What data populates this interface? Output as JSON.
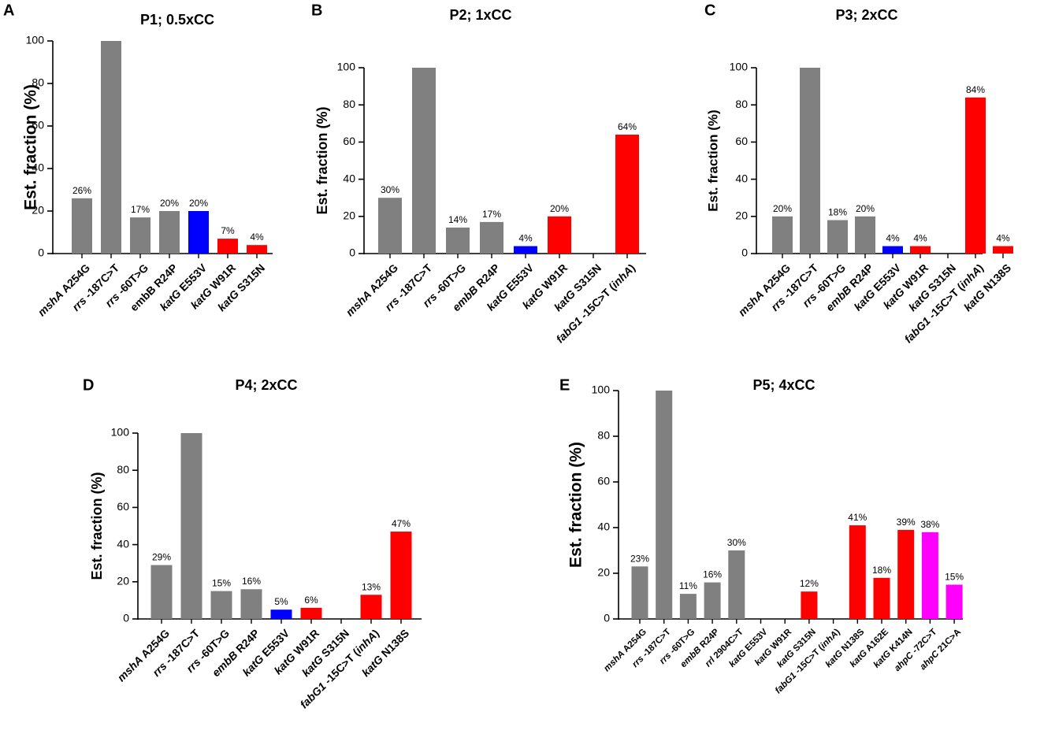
{
  "colors": {
    "gray": "#808080",
    "blue": "#0000ff",
    "red": "#ff0000",
    "magenta": "#ff00ff"
  },
  "chart_data": [
    {
      "panel": "A",
      "type": "bar",
      "title": "P1; 0.5xCC",
      "ylabel": "Est. fraction (%)",
      "ylim": [
        0,
        100
      ],
      "yticks": [
        0,
        20,
        40,
        60,
        80,
        100
      ],
      "categories": [
        [
          {
            "t": "mshA",
            "i": true
          },
          {
            "t": " A254G",
            "i": false
          }
        ],
        [
          {
            "t": "rrs",
            "i": true
          },
          {
            "t": " -187C>T",
            "i": false
          }
        ],
        [
          {
            "t": "rrs",
            "i": true
          },
          {
            "t": " -60T>G",
            "i": false
          }
        ],
        [
          {
            "t": "embB R24P",
            "i": false
          }
        ],
        [
          {
            "t": "katG",
            "i": true
          },
          {
            "t": " E553V",
            "i": false
          }
        ],
        [
          {
            "t": "katG",
            "i": true
          },
          {
            "t": " W91R",
            "i": false
          }
        ],
        [
          {
            "t": "katG",
            "i": true
          },
          {
            "t": " S315N",
            "i": false
          }
        ]
      ],
      "values": [
        26,
        100,
        17,
        20,
        20,
        7,
        4
      ],
      "colors": [
        "gray",
        "gray",
        "gray",
        "gray",
        "blue",
        "red",
        "red"
      ],
      "data_labels": [
        "26%",
        "",
        "17%",
        "20%",
        "20%",
        "7%",
        "4%"
      ]
    },
    {
      "panel": "B",
      "type": "bar",
      "title": "P2; 1xCC",
      "ylabel": "Est. fraction (%)",
      "ylim": [
        0,
        100
      ],
      "yticks": [
        0,
        20,
        40,
        60,
        80,
        100
      ],
      "categories": [
        [
          {
            "t": "mshA",
            "i": true
          },
          {
            "t": " A254G",
            "i": false
          }
        ],
        [
          {
            "t": "rrs",
            "i": true
          },
          {
            "t": " -187C>T",
            "i": false
          }
        ],
        [
          {
            "t": "rrs",
            "i": true
          },
          {
            "t": " -60T>G",
            "i": false
          }
        ],
        [
          {
            "t": "embB",
            "i": true
          },
          {
            "t": " R24P",
            "i": false
          }
        ],
        [
          {
            "t": "katG",
            "i": true
          },
          {
            "t": " E553V",
            "i": false
          }
        ],
        [
          {
            "t": "katG",
            "i": true
          },
          {
            "t": " W91R",
            "i": false
          }
        ],
        [
          {
            "t": "katG",
            "i": true
          },
          {
            "t": " S315N",
            "i": false
          }
        ],
        [
          {
            "t": "fabG1",
            "i": true
          },
          {
            "t": " -15C>T (",
            "i": false
          },
          {
            "t": "inhA",
            "i": true
          },
          {
            "t": ")",
            "i": false
          }
        ]
      ],
      "values": [
        30,
        100,
        14,
        17,
        4,
        20,
        0,
        64
      ],
      "colors": [
        "gray",
        "gray",
        "gray",
        "gray",
        "blue",
        "red",
        "red",
        "red"
      ],
      "data_labels": [
        "30%",
        "",
        "14%",
        "17%",
        "4%",
        "20%",
        "",
        "64%"
      ]
    },
    {
      "panel": "C",
      "type": "bar",
      "title": "P3; 2xCC",
      "ylabel": "Est. fraction (%)",
      "ylim": [
        0,
        100
      ],
      "yticks": [
        0,
        20,
        40,
        60,
        80,
        100
      ],
      "categories": [
        [
          {
            "t": "mshA",
            "i": true
          },
          {
            "t": " A254G",
            "i": false
          }
        ],
        [
          {
            "t": "rrs",
            "i": true
          },
          {
            "t": " -187C>T",
            "i": false
          }
        ],
        [
          {
            "t": "rrs",
            "i": true
          },
          {
            "t": " -60T>G",
            "i": false
          }
        ],
        [
          {
            "t": "embB",
            "i": true
          },
          {
            "t": " R24P",
            "i": false
          }
        ],
        [
          {
            "t": "katG",
            "i": true
          },
          {
            "t": " E553V",
            "i": false
          }
        ],
        [
          {
            "t": "katG",
            "i": true
          },
          {
            "t": " W91R",
            "i": false
          }
        ],
        [
          {
            "t": "katG",
            "i": true
          },
          {
            "t": " S315N",
            "i": false
          }
        ],
        [
          {
            "t": "fabG1",
            "i": true
          },
          {
            "t": " -15C>T (",
            "i": false
          },
          {
            "t": "inhA",
            "i": true
          },
          {
            "t": ")",
            "i": false
          }
        ],
        [
          {
            "t": "katG",
            "i": true
          },
          {
            "t": "  N138S",
            "i": false
          }
        ]
      ],
      "values": [
        20,
        100,
        18,
        20,
        4,
        4,
        0,
        84,
        4
      ],
      "colors": [
        "gray",
        "gray",
        "gray",
        "gray",
        "blue",
        "red",
        "red",
        "red",
        "red"
      ],
      "data_labels": [
        "20%",
        "",
        "18%",
        "20%",
        "4%",
        "4%",
        "",
        "84%",
        "4%"
      ]
    },
    {
      "panel": "D",
      "type": "bar",
      "title": "P4; 2xCC",
      "ylabel": "Est. fraction (%)",
      "ylim": [
        0,
        100
      ],
      "yticks": [
        0,
        20,
        40,
        60,
        80,
        100
      ],
      "categories": [
        [
          {
            "t": "mshA",
            "i": true
          },
          {
            "t": " A254G",
            "i": false
          }
        ],
        [
          {
            "t": "rrs",
            "i": true
          },
          {
            "t": " -187C>T",
            "i": false
          }
        ],
        [
          {
            "t": "rrs",
            "i": true
          },
          {
            "t": " -60T>G",
            "i": false
          }
        ],
        [
          {
            "t": "embB",
            "i": true
          },
          {
            "t": " R24P",
            "i": false
          }
        ],
        [
          {
            "t": "katG",
            "i": true
          },
          {
            "t": " E553V",
            "i": false
          }
        ],
        [
          {
            "t": "katG",
            "i": true
          },
          {
            "t": " W91R",
            "i": false
          }
        ],
        [
          {
            "t": "katG",
            "i": true
          },
          {
            "t": " S315N",
            "i": false
          }
        ],
        [
          {
            "t": "fabG1",
            "i": true
          },
          {
            "t": " -15C>T (",
            "i": false
          },
          {
            "t": "inhA",
            "i": true
          },
          {
            "t": ")",
            "i": false
          }
        ],
        [
          {
            "t": "katG",
            "i": true
          },
          {
            "t": "  N138S",
            "i": false
          }
        ]
      ],
      "values": [
        29,
        100,
        15,
        16,
        5,
        6,
        0,
        13,
        47
      ],
      "colors": [
        "gray",
        "gray",
        "gray",
        "gray",
        "blue",
        "red",
        "red",
        "red",
        "red"
      ],
      "data_labels": [
        "29%",
        "",
        "15%",
        "16%",
        "5%",
        "6%",
        "",
        "13%",
        "47%"
      ]
    },
    {
      "panel": "E",
      "type": "bar",
      "title": "P5; 4xCC",
      "ylabel": "Est. fraction (%)",
      "ylim": [
        0,
        100
      ],
      "yticks": [
        0,
        20,
        40,
        60,
        80,
        100
      ],
      "categories": [
        [
          {
            "t": "mshA",
            "i": true
          },
          {
            "t": "  A254G",
            "i": false
          }
        ],
        [
          {
            "t": "rrs",
            "i": true
          },
          {
            "t": "  -187C>T",
            "i": false
          }
        ],
        [
          {
            "t": "rrs",
            "i": true
          },
          {
            "t": "  -60T>G",
            "i": false
          }
        ],
        [
          {
            "t": "embB",
            "i": true
          },
          {
            "t": "  R24P",
            "i": false
          }
        ],
        [
          {
            "t": "rrl",
            "i": true
          },
          {
            "t": "  2904C>T",
            "i": false
          }
        ],
        [
          {
            "t": "katG",
            "i": true
          },
          {
            "t": "  E553V",
            "i": false
          }
        ],
        [
          {
            "t": "katG",
            "i": true
          },
          {
            "t": "  W91R",
            "i": false
          }
        ],
        [
          {
            "t": "katG",
            "i": true
          },
          {
            "t": "  S315N",
            "i": false
          }
        ],
        [
          {
            "t": "fabG1",
            "i": true
          },
          {
            "t": "  -15C>T (",
            "i": false
          },
          {
            "t": "inhA",
            "i": true
          },
          {
            "t": ")",
            "i": false
          }
        ],
        [
          {
            "t": "katG",
            "i": true
          },
          {
            "t": "  N138S",
            "i": false
          }
        ],
        [
          {
            "t": "katG",
            "i": true
          },
          {
            "t": "  A162E",
            "i": false
          }
        ],
        [
          {
            "t": "katG",
            "i": true
          },
          {
            "t": "  K414N",
            "i": false
          }
        ],
        [
          {
            "t": "ahpC",
            "i": true
          },
          {
            "t": "  -72C>T",
            "i": false
          }
        ],
        [
          {
            "t": "ahpC",
            "i": true
          },
          {
            "t": "  21C>A",
            "i": false
          }
        ]
      ],
      "values": [
        23,
        100,
        11,
        16,
        30,
        0,
        0,
        12,
        0,
        41,
        18,
        39,
        38,
        15
      ],
      "colors": [
        "gray",
        "gray",
        "gray",
        "gray",
        "gray",
        "red",
        "red",
        "red",
        "red",
        "red",
        "red",
        "red",
        "magenta",
        "magenta"
      ],
      "data_labels": [
        "23%",
        "",
        "11%",
        "16%",
        "30%",
        "",
        "",
        "12%",
        "",
        "41%",
        "18%",
        "39%",
        "38%",
        "15%"
      ]
    }
  ]
}
